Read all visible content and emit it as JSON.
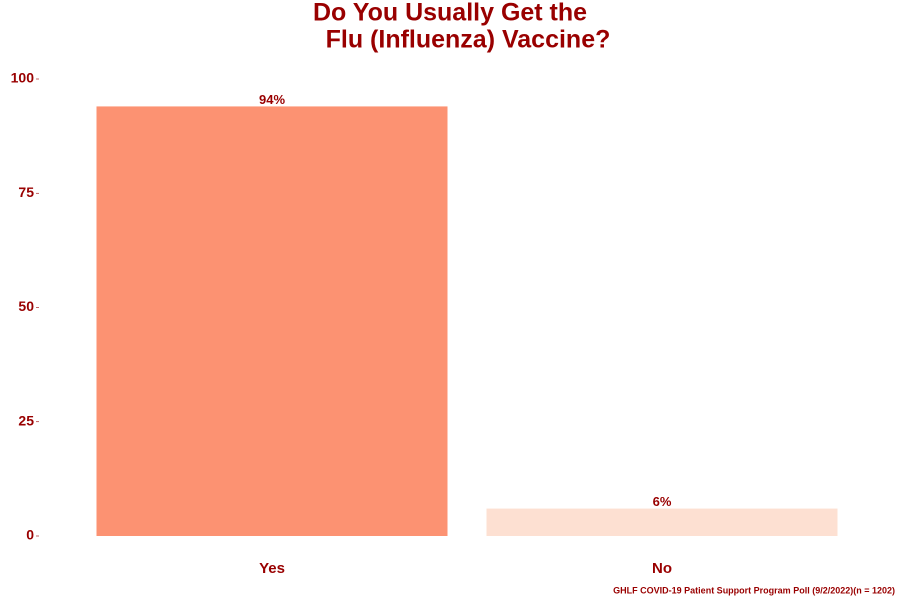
{
  "chart_data": {
    "type": "bar",
    "title": [
      "Do You Usually Get the",
      "Flu (Influenza) Vaccine?"
    ],
    "categories": [
      "Yes",
      "No"
    ],
    "values": [
      94,
      6
    ],
    "value_labels": [
      "94%",
      "6%"
    ],
    "colors": [
      "#fc9272",
      "#fde0d2"
    ],
    "ylim": [
      0,
      100
    ],
    "yticks": [
      0,
      25,
      50,
      75,
      100
    ],
    "grid": false,
    "caption": "GHLF COVID-19 Patient Support Program Poll (9/2/2022)(n = 1202)"
  }
}
